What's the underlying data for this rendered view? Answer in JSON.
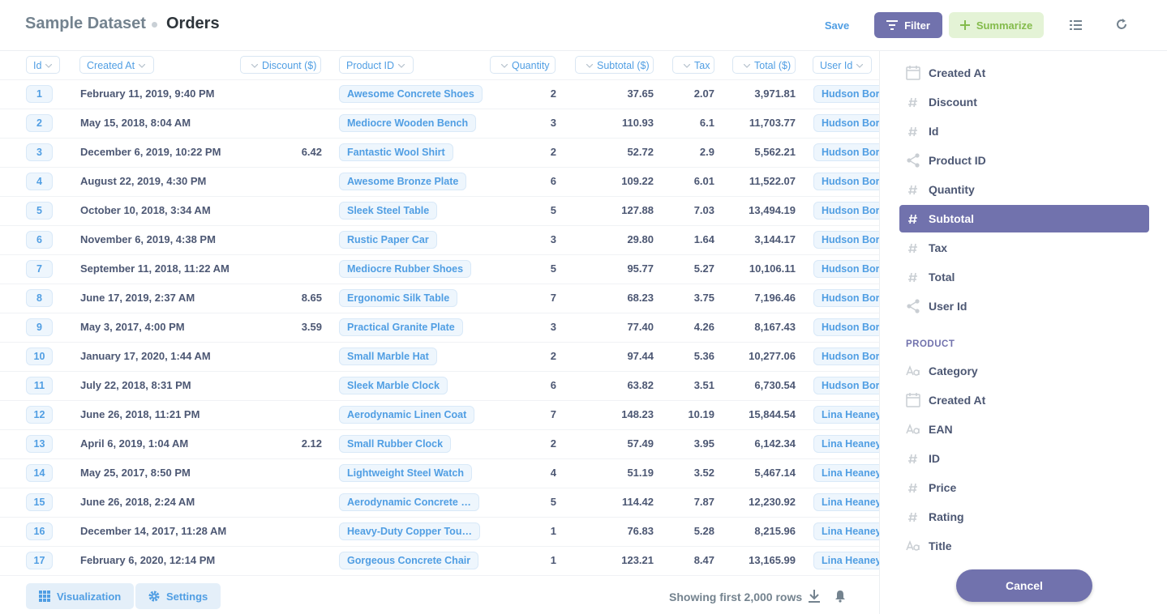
{
  "header": {
    "breadcrumb": "Sample Dataset",
    "title": "Orders",
    "save": "Save",
    "filter": "Filter",
    "summarize": "Summarize"
  },
  "table": {
    "columns": [
      {
        "name": "Id",
        "align": "left"
      },
      {
        "name": "Created At",
        "align": "left"
      },
      {
        "name": "Discount ($)",
        "align": "right"
      },
      {
        "name": "Product ID",
        "align": "left"
      },
      {
        "name": "Quantity",
        "align": "right"
      },
      {
        "name": "Subtotal ($)",
        "align": "right"
      },
      {
        "name": "Tax",
        "align": "right"
      },
      {
        "name": "Total ($)",
        "align": "right"
      },
      {
        "name": "User Id",
        "align": "left"
      }
    ],
    "rows": [
      [
        1,
        "February 11, 2019, 9:40 PM",
        null,
        "Awesome Concrete Shoes",
        2,
        "37.65",
        "2.07",
        "3,971.81",
        "Hudson Bore"
      ],
      [
        2,
        "May 15, 2018, 8:04 AM",
        null,
        "Mediocre Wooden Bench",
        3,
        "110.93",
        "6.1",
        "11,703.77",
        "Hudson Bore"
      ],
      [
        3,
        "December 6, 2019, 10:22 PM",
        "6.42",
        "Fantastic Wool Shirt",
        2,
        "52.72",
        "2.9",
        "5,562.21",
        "Hudson Bore"
      ],
      [
        4,
        "August 22, 2019, 4:30 PM",
        null,
        "Awesome Bronze Plate",
        6,
        "109.22",
        "6.01",
        "11,522.07",
        "Hudson Bore"
      ],
      [
        5,
        "October 10, 2018, 3:34 AM",
        null,
        "Sleek Steel Table",
        5,
        "127.88",
        "7.03",
        "13,494.19",
        "Hudson Bore"
      ],
      [
        6,
        "November 6, 2019, 4:38 PM",
        null,
        "Rustic Paper Car",
        3,
        "29.80",
        "1.64",
        "3,144.17",
        "Hudson Bore"
      ],
      [
        7,
        "September 11, 2018, 11:22 AM",
        null,
        "Mediocre Rubber Shoes",
        5,
        "95.77",
        "5.27",
        "10,106.11",
        "Hudson Bore"
      ],
      [
        8,
        "June 17, 2019, 2:37 AM",
        "8.65",
        "Ergonomic Silk Table",
        7,
        "68.23",
        "3.75",
        "7,196.46",
        "Hudson Bore"
      ],
      [
        9,
        "May 3, 2017, 4:00 PM",
        "3.59",
        "Practical Granite Plate",
        3,
        "77.40",
        "4.26",
        "8,167.43",
        "Hudson Bore"
      ],
      [
        10,
        "January 17, 2020, 1:44 AM",
        null,
        "Small Marble Hat",
        2,
        "97.44",
        "5.36",
        "10,277.06",
        "Hudson Bore"
      ],
      [
        11,
        "July 22, 2018, 8:31 PM",
        null,
        "Sleek Marble Clock",
        6,
        "63.82",
        "3.51",
        "6,730.54",
        "Hudson Bore"
      ],
      [
        12,
        "June 26, 2018, 11:21 PM",
        null,
        "Aerodynamic Linen Coat",
        7,
        "148.23",
        "10.19",
        "15,844.54",
        "Lina Heaney"
      ],
      [
        13,
        "April 6, 2019, 1:04 AM",
        "2.12",
        "Small Rubber Clock",
        2,
        "57.49",
        "3.95",
        "6,142.34",
        "Lina Heaney"
      ],
      [
        14,
        "May 25, 2017, 8:50 PM",
        null,
        "Lightweight Steel Watch",
        4,
        "51.19",
        "3.52",
        "5,467.14",
        "Lina Heaney"
      ],
      [
        15,
        "June 26, 2018, 2:24 AM",
        null,
        "Aerodynamic Concrete …",
        5,
        "114.42",
        "7.87",
        "12,230.92",
        "Lina Heaney"
      ],
      [
        16,
        "December 14, 2017, 11:28 AM",
        null,
        "Heavy-Duty Copper Tou…",
        1,
        "76.83",
        "5.28",
        "8,215.96",
        "Lina Heaney"
      ],
      [
        17,
        "February 6, 2020, 12:14 PM",
        null,
        "Gorgeous Concrete Chair",
        1,
        "123.21",
        "8.47",
        "13,165.99",
        "Lina Heaney"
      ]
    ]
  },
  "footer": {
    "visualization": "Visualization",
    "settings": "Settings",
    "row_count": "Showing first 2,000 rows"
  },
  "sidebar": {
    "fields": [
      {
        "name": "Created At",
        "type": "date"
      },
      {
        "name": "Discount",
        "type": "number"
      },
      {
        "name": "Id",
        "type": "number"
      },
      {
        "name": "Product ID",
        "type": "fk"
      },
      {
        "name": "Quantity",
        "type": "number"
      },
      {
        "name": "Subtotal",
        "type": "number",
        "selected": true
      },
      {
        "name": "Tax",
        "type": "number"
      },
      {
        "name": "Total",
        "type": "number"
      },
      {
        "name": "User Id",
        "type": "fk"
      }
    ],
    "section": "PRODUCT",
    "section_fields": [
      {
        "name": "Category",
        "type": "text"
      },
      {
        "name": "Created At",
        "type": "date"
      },
      {
        "name": "EAN",
        "type": "text"
      },
      {
        "name": "ID",
        "type": "number"
      },
      {
        "name": "Price",
        "type": "number"
      },
      {
        "name": "Rating",
        "type": "number"
      },
      {
        "name": "Title",
        "type": "text"
      }
    ],
    "cancel": "Cancel"
  }
}
